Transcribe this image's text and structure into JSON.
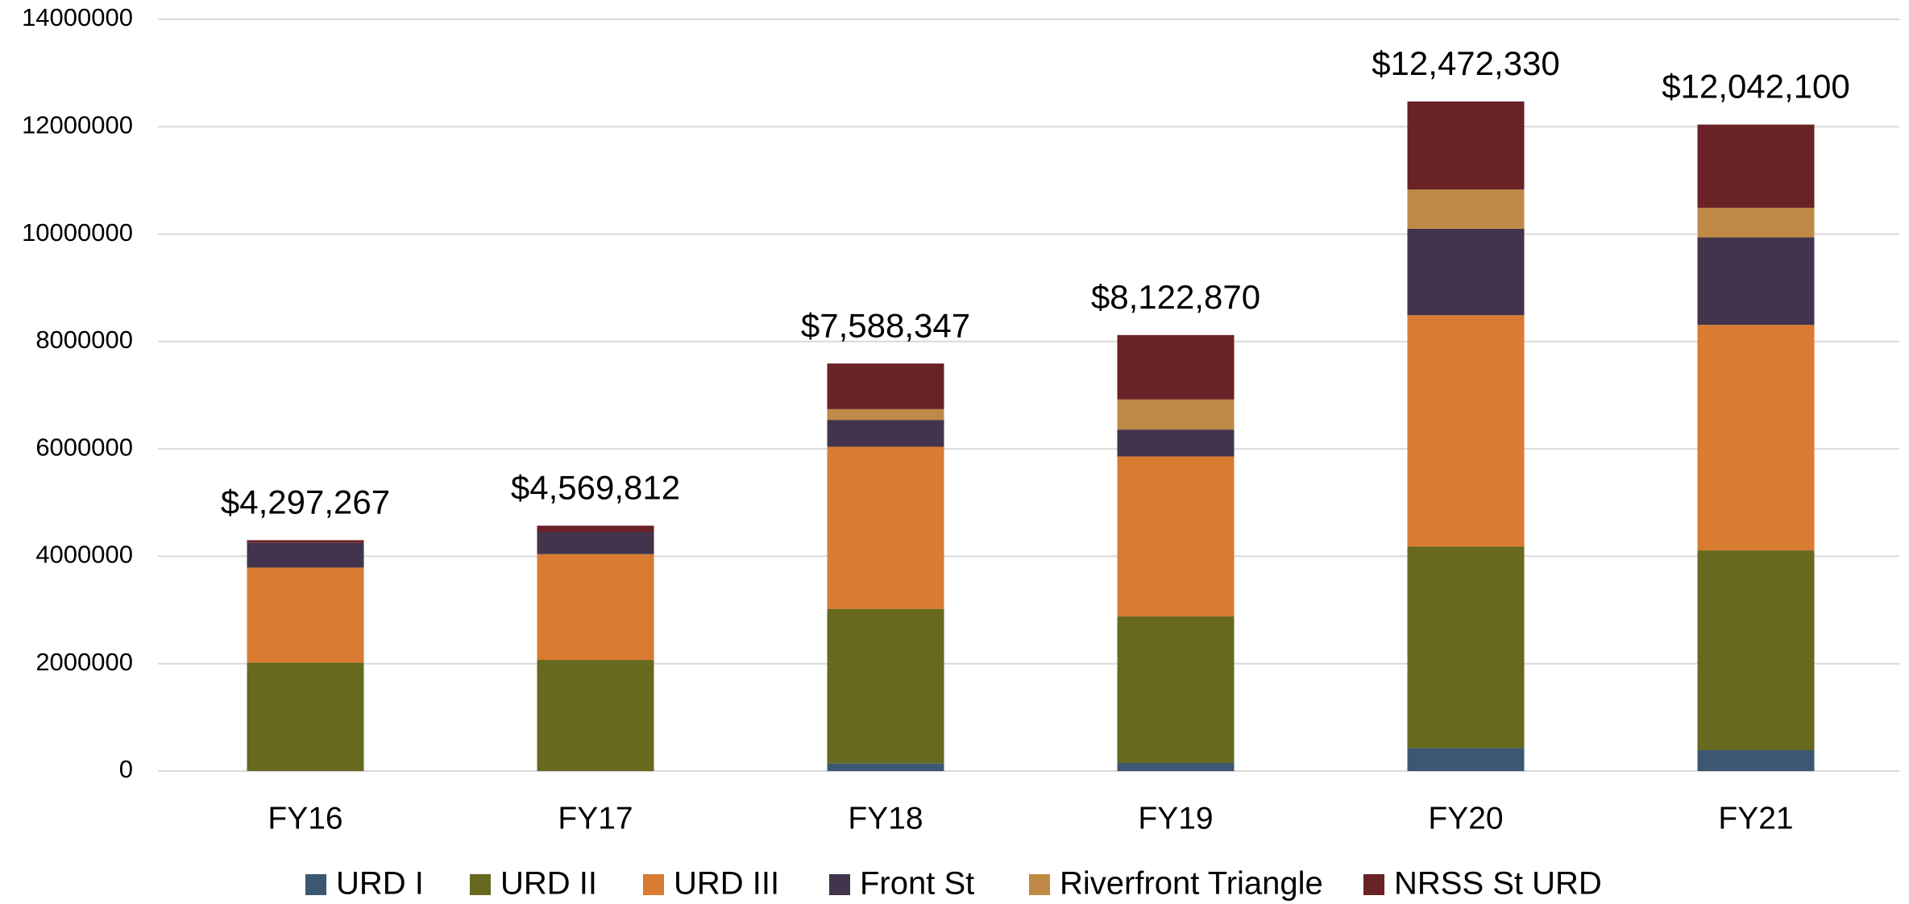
{
  "chart_data": {
    "type": "stacked_bar",
    "categories": [
      "FY16",
      "FY17",
      "FY18",
      "FY19",
      "FY20",
      "FY21"
    ],
    "series": [
      {
        "name": "URD I",
        "color": "#3b5772",
        "values": [
          0,
          0,
          140000,
          150000,
          430000,
          390000
        ]
      },
      {
        "name": "URD II",
        "color": "#66691e",
        "values": [
          2020000,
          2070000,
          2880000,
          2730000,
          3750000,
          3720000
        ]
      },
      {
        "name": "URD III",
        "color": "#d97b31",
        "values": [
          1770000,
          1970000,
          3020000,
          2980000,
          4310000,
          4200000
        ]
      },
      {
        "name": "Front St",
        "color": "#41344c",
        "values": [
          460000,
          410000,
          500000,
          500000,
          1610000,
          1630000
        ]
      },
      {
        "name": "Riverfront Triangle",
        "color": "#bf8a45",
        "values": [
          0,
          0,
          200000,
          560000,
          730000,
          550000
        ]
      },
      {
        "name": "NRSS St URD",
        "color": "#692225",
        "values": [
          50000,
          120000,
          850000,
          1200000,
          1640000,
          1550000
        ]
      }
    ],
    "totals": [
      4297267,
      4569812,
      7588347,
      8122870,
      12472330,
      12042100
    ],
    "total_labels": [
      "$4,297,267",
      "$4,569,812",
      "$7,588,347",
      "$8,122,870",
      "$12,472,330",
      "$12,042,100"
    ],
    "ylim": [
      0,
      14000000
    ],
    "yticks": [
      0,
      2000000,
      4000000,
      6000000,
      8000000,
      10000000,
      12000000,
      14000000
    ],
    "grid": true,
    "legend": "bottom"
  }
}
